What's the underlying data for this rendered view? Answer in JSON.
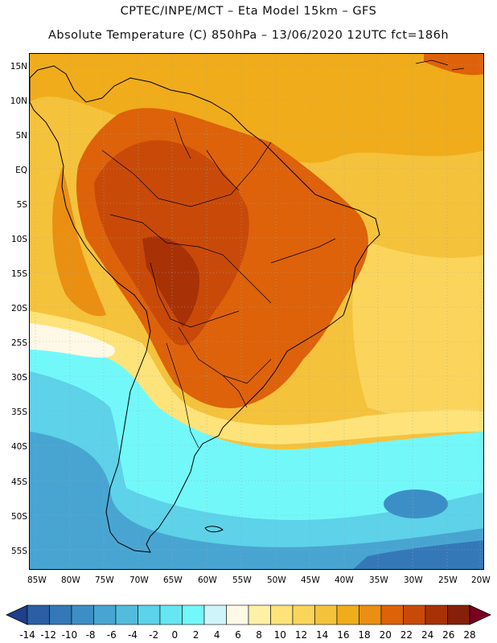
{
  "header": {
    "line1": "CPTEC/INPE/MCT –  Eta Model 15km – GFS",
    "line2": "Absolute Temperature (C) 850hPa – 13/06/2020 12UTC fct=186h"
  },
  "axes": {
    "lat_labels": [
      "15N",
      "10N",
      "5N",
      "EQ",
      "5S",
      "10S",
      "15S",
      "20S",
      "25S",
      "30S",
      "35S",
      "40S",
      "45S",
      "50S",
      "55S"
    ],
    "lon_labels": [
      "85W",
      "80W",
      "75W",
      "70W",
      "65W",
      "60W",
      "55W",
      "50W",
      "45W",
      "40W",
      "35W",
      "30W",
      "25W",
      "20W"
    ]
  },
  "colorbar": {
    "labels": [
      "-14",
      "-12",
      "-10",
      "-8",
      "-6",
      "-4",
      "-2",
      "0",
      "2",
      "4",
      "6",
      "8",
      "10",
      "12",
      "14",
      "16",
      "18",
      "20",
      "22",
      "24",
      "26",
      "28"
    ],
    "colors": [
      "#1d3f8c",
      "#2b5ea5",
      "#3478b8",
      "#3c8fc6",
      "#48a5d2",
      "#53bcdd",
      "#5dd2e8",
      "#66e6f3",
      "#73f8fa",
      "#cff5fb",
      "#fff8e6",
      "#fff0a8",
      "#fde37a",
      "#fbd55b",
      "#f5c23c",
      "#f0ac1a",
      "#ea8f12",
      "#dd620a",
      "#c94a08",
      "#a83206",
      "#86200a",
      "#7a0020"
    ]
  }
}
